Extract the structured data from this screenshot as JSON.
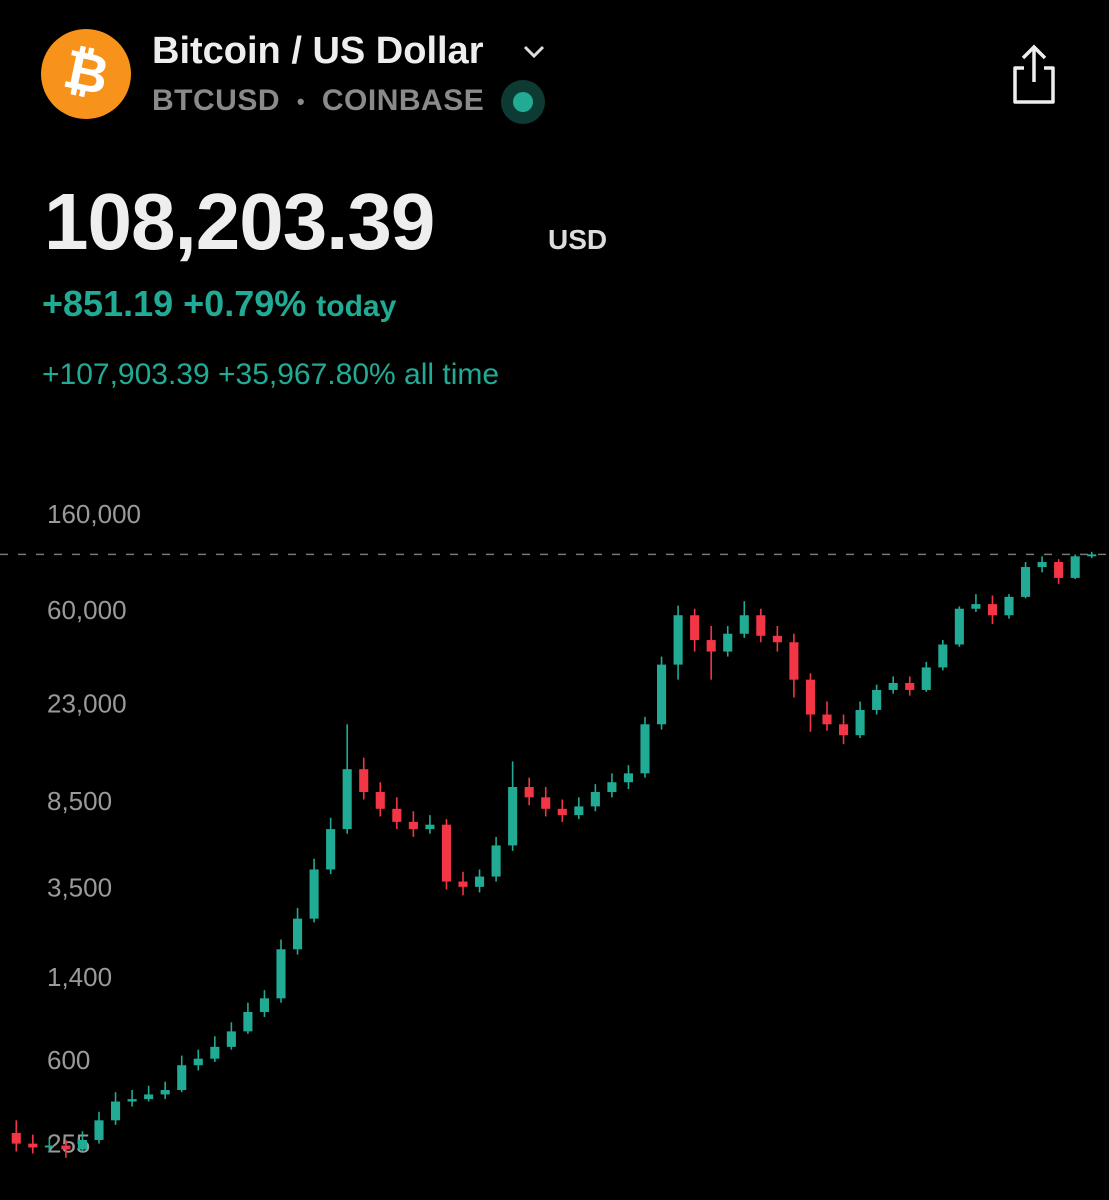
{
  "header": {
    "title": "Bitcoin / US Dollar",
    "symbol": "BTCUSD",
    "exchange": "COINBASE",
    "price": "108,203.39",
    "currency": "USD",
    "change_today": "+851.19",
    "change_today_pct": "+0.79%",
    "today_label": "today",
    "change_all_time": "+107,903.39",
    "change_all_time_pct": "+35,967.80%",
    "all_time_label": "all time"
  },
  "chart_data": {
    "type": "candlestick",
    "log_scale": true,
    "grid": false,
    "up_color": "#22ab94",
    "down_color": "#f23645",
    "price_line": 108203.39,
    "ylim": [
      146,
      209000
    ],
    "yticks": [
      {
        "value": 160000,
        "label": "160,000"
      },
      {
        "value": 60000,
        "label": "60,000"
      },
      {
        "value": 23000,
        "label": "23,000"
      },
      {
        "value": 8500,
        "label": "8,500"
      },
      {
        "value": 3500,
        "label": "3,500"
      },
      {
        "value": 1400,
        "label": "1,400"
      },
      600,
      255
    ],
    "open": [
      290,
      260,
      250,
      255,
      245,
      270,
      330,
      400,
      410,
      430,
      450,
      580,
      620,
      700,
      820,
      1000,
      1150,
      1900,
      2600,
      4300,
      6500,
      12000,
      9500,
      8000,
      7000,
      6500,
      6800,
      3800,
      3600,
      4000,
      5500,
      10000,
      9000,
      8000,
      7500,
      8200,
      9500,
      10500,
      11500,
      19000,
      35000,
      58000,
      45000,
      40000,
      48000,
      58000,
      47000,
      44000,
      30000,
      21000,
      19000,
      17000,
      22000,
      27000,
      29000,
      27000,
      34000,
      43000,
      62000,
      65000,
      58000,
      70000,
      95000,
      100000,
      85000,
      106000
    ],
    "high": [
      330,
      285,
      275,
      270,
      295,
      360,
      440,
      450,
      470,
      490,
      640,
      680,
      780,
      900,
      1100,
      1250,
      2100,
      2900,
      4800,
      7300,
      19000,
      13500,
      10500,
      9000,
      7800,
      7500,
      7200,
      4200,
      4300,
      6000,
      13000,
      11000,
      10000,
      8800,
      9000,
      10300,
      11500,
      12500,
      20500,
      38000,
      64000,
      62000,
      52000,
      52000,
      67000,
      62000,
      52000,
      48000,
      32000,
      24000,
      21000,
      24000,
      28500,
      31000,
      31000,
      36000,
      45000,
      63500,
      72000,
      71000,
      72000,
      100000,
      106000,
      103000,
      108000,
      111000
    ],
    "low": [
      240,
      235,
      240,
      225,
      240,
      260,
      315,
      380,
      400,
      410,
      440,
      550,
      600,
      680,
      800,
      950,
      1100,
      1800,
      2500,
      4100,
      6200,
      8800,
      7400,
      6500,
      6000,
      6200,
      3500,
      3300,
      3400,
      3800,
      5200,
      8300,
      7400,
      7000,
      7200,
      7800,
      9000,
      9800,
      11000,
      18000,
      30000,
      40000,
      30000,
      38000,
      46000,
      44000,
      40000,
      25000,
      17600,
      17800,
      15500,
      16500,
      21000,
      26000,
      25500,
      26500,
      33000,
      42000,
      60000,
      53000,
      56000,
      69000,
      90000,
      80000,
      84000,
      104000
    ],
    "close": [
      260,
      250,
      255,
      245,
      270,
      330,
      400,
      410,
      430,
      450,
      580,
      620,
      700,
      820,
      1000,
      1150,
      1900,
      2600,
      4300,
      6500,
      12000,
      9500,
      8000,
      7000,
      6500,
      6800,
      3800,
      3600,
      4000,
      5500,
      10000,
      9000,
      8000,
      7500,
      8200,
      9500,
      10500,
      11500,
      19000,
      35000,
      58000,
      45000,
      40000,
      48000,
      58000,
      47000,
      44000,
      30000,
      21000,
      19000,
      17000,
      22000,
      27000,
      29000,
      27000,
      34000,
      43000,
      62000,
      65000,
      58000,
      70000,
      95000,
      100000,
      85000,
      106000,
      108203.39
    ]
  }
}
